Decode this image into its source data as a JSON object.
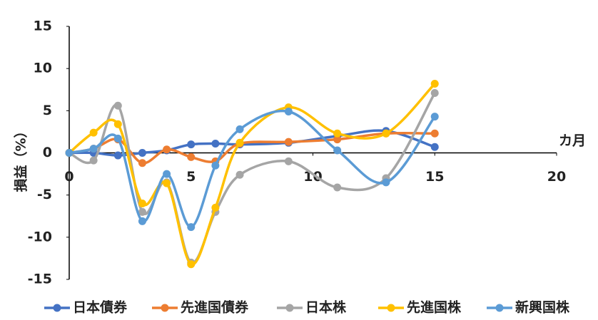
{
  "chart_data": {
    "type": "line",
    "y_label": "損益（%）",
    "x_label": "カ月",
    "x": [
      0,
      1,
      2,
      3,
      4,
      5,
      6,
      7,
      9,
      11,
      13,
      15
    ],
    "xlim": [
      0,
      20
    ],
    "xticks": [
      0,
      5,
      10,
      15,
      20
    ],
    "ylim": [
      -15,
      15
    ],
    "yticks": [
      -15,
      -10,
      -5,
      0,
      5,
      10,
      15
    ],
    "smooth": true,
    "series": [
      {
        "name": "日本債券",
        "color": "#4472c4",
        "values": [
          0,
          0,
          -0.3,
          0,
          0.3,
          1.0,
          1.1,
          1.0,
          1.2,
          2.0,
          2.6,
          0.7
        ]
      },
      {
        "name": "先進国債券",
        "color": "#ed7d31",
        "values": [
          0,
          0.5,
          1.6,
          -1.2,
          0.4,
          -0.5,
          -1.0,
          1.1,
          1.3,
          1.6,
          2.3,
          2.3
        ]
      },
      {
        "name": "日本株",
        "color": "#a5a5a5",
        "values": [
          0,
          -0.9,
          5.6,
          -7.0,
          -3.5,
          -13.0,
          -7.0,
          -2.6,
          -1.0,
          -4.1,
          -3.0,
          7.1
        ]
      },
      {
        "name": "先進国株",
        "color": "#ffc000",
        "values": [
          0,
          2.4,
          3.4,
          -6.0,
          -3.6,
          -13.2,
          -6.5,
          1.2,
          5.4,
          2.3,
          2.3,
          8.2
        ]
      },
      {
        "name": "新興国株",
        "color": "#5b9bd5",
        "values": [
          0,
          0.5,
          1.7,
          -8.1,
          -2.5,
          -8.8,
          -1.5,
          2.8,
          4.9,
          0.3,
          -3.5,
          4.3
        ]
      }
    ]
  }
}
